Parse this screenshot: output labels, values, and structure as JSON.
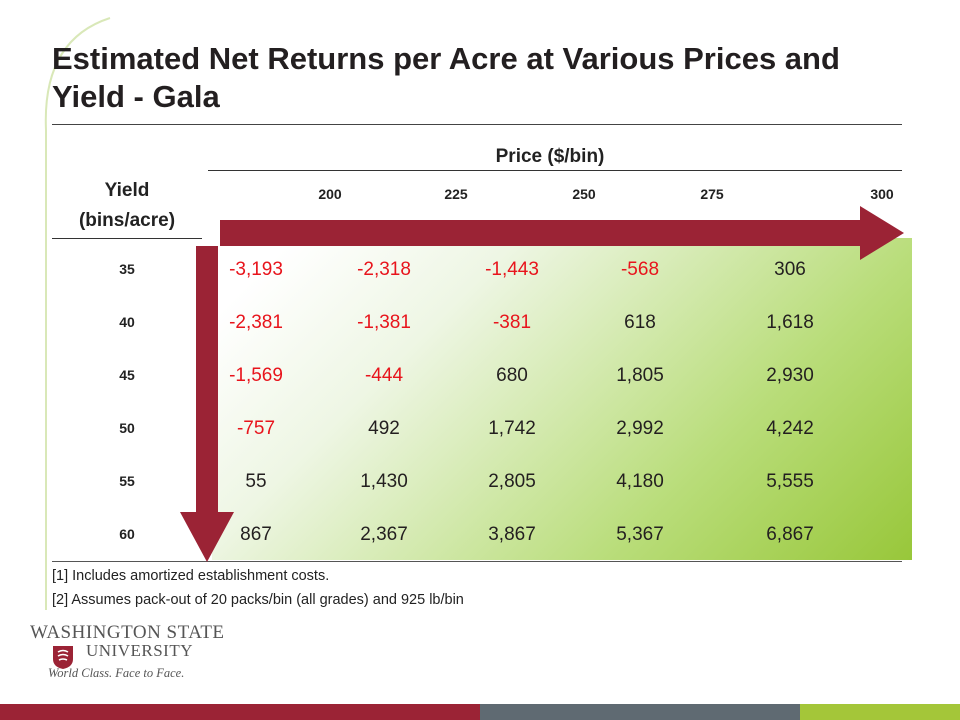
{
  "slide": {
    "title": "Estimated Net Returns per Acre at Various Prices and Yield - Gala"
  },
  "table": {
    "price_header": "Price ($/bin)",
    "yield_header_line1": "Yield",
    "yield_header_line2": "(bins/acre)",
    "prices": [
      "200",
      "225",
      "250",
      "275",
      "300"
    ],
    "rows": [
      {
        "yield": "35",
        "values": [
          "-3,193",
          "-2,318",
          "-1,443",
          "-568",
          "306"
        ]
      },
      {
        "yield": "40",
        "values": [
          "-2,381",
          "-1,381",
          "-381",
          "618",
          "1,618"
        ]
      },
      {
        "yield": "45",
        "values": [
          "-1,569",
          "-444",
          "680",
          "1,805",
          "2,930"
        ]
      },
      {
        "yield": "50",
        "values": [
          "-757",
          "492",
          "1,742",
          "2,992",
          "4,242"
        ]
      },
      {
        "yield": "55",
        "values": [
          "55",
          "1,430",
          "2,805",
          "4,180",
          "5,555"
        ]
      },
      {
        "yield": "60",
        "values": [
          "867",
          "2,367",
          "3,867",
          "5,367",
          "6,867"
        ]
      }
    ]
  },
  "notes": [
    "[1] Includes amortized establishment costs.",
    "[2] Assumes pack-out of 20 packs/bin (all grades) and 925 lb/bin"
  ],
  "logo": {
    "line1": "WASHINGTON STATE",
    "line2": "UNIVERSITY",
    "tagline": "World Class. Face to Face."
  },
  "colors": {
    "arrow": "#9b2335",
    "negative": "#e8141c",
    "gradient_end": "#98c73a",
    "footer_red": "#9b2335",
    "footer_gray": "#5f6a72",
    "footer_green": "#a4c639"
  }
}
